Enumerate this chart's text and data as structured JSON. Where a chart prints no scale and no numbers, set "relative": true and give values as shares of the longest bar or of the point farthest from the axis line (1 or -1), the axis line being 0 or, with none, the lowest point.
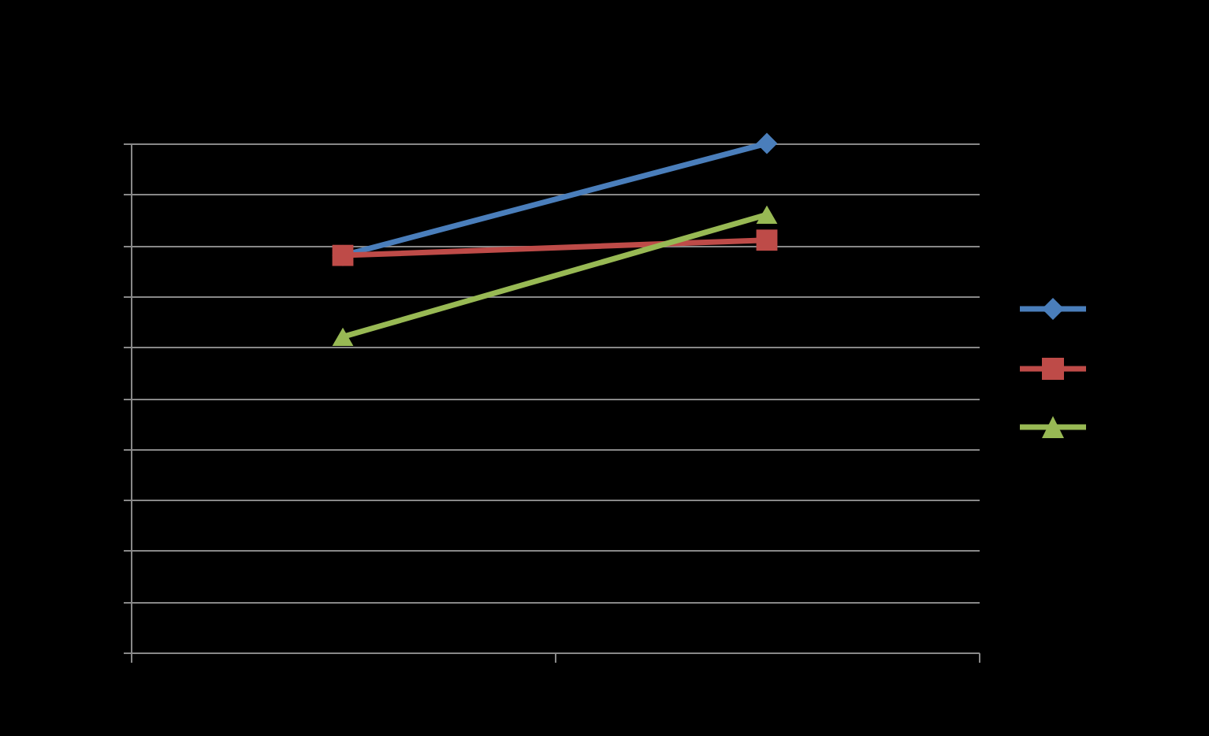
{
  "chart_data": {
    "type": "line",
    "relative": true,
    "categories": [
      null,
      null
    ],
    "grid": "y",
    "series": [
      {
        "color": "#4a7ebb",
        "marker": "diamond",
        "values": [
          0.78,
          1
        ]
      },
      {
        "color": "#be4b48",
        "marker": "square",
        "values": [
          0.78,
          0.81
        ]
      },
      {
        "color": "#98b954",
        "marker": "triangle",
        "values": [
          0.62,
          0.86
        ]
      }
    ]
  }
}
